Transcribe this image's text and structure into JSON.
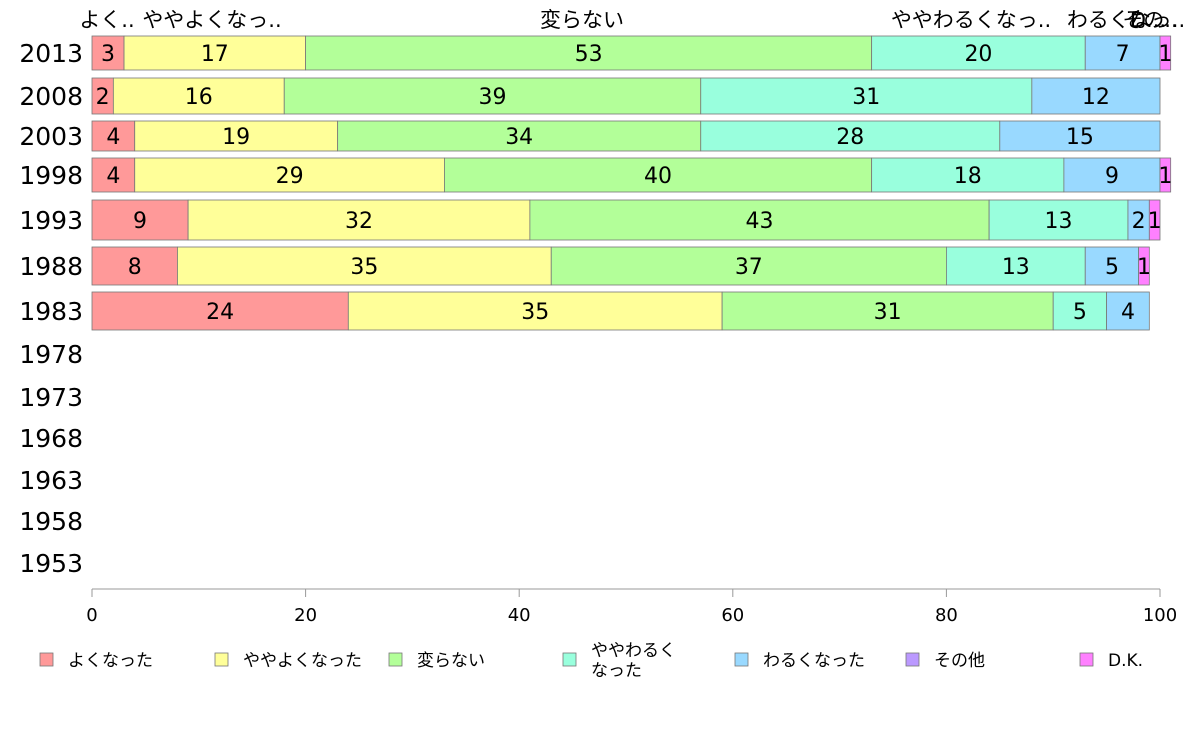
{
  "chart_data": {
    "type": "bar",
    "orientation": "horizontal",
    "stacked": true,
    "categories": [
      "2013",
      "2008",
      "2003",
      "1998",
      "1993",
      "1988",
      "1983",
      "1978",
      "1973",
      "1968",
      "1963",
      "1958",
      "1953"
    ],
    "series": [
      {
        "name": "よくなった",
        "color": "#ff9999",
        "values": [
          3,
          2,
          4,
          4,
          9,
          8,
          24,
          null,
          null,
          null,
          null,
          null,
          null
        ]
      },
      {
        "name": "ややよくなった",
        "color": "#ffff99",
        "values": [
          17,
          16,
          19,
          29,
          32,
          35,
          35,
          null,
          null,
          null,
          null,
          null,
          null
        ]
      },
      {
        "name": "変らない",
        "color": "#b3ff99",
        "values": [
          53,
          39,
          34,
          40,
          43,
          37,
          31,
          null,
          null,
          null,
          null,
          null,
          null
        ]
      },
      {
        "name": "ややわるくなった",
        "color": "#99ffdd",
        "values": [
          20,
          31,
          28,
          18,
          13,
          13,
          5,
          null,
          null,
          null,
          null,
          null,
          null
        ]
      },
      {
        "name": "わるくなった",
        "color": "#99d9ff",
        "values": [
          7,
          12,
          15,
          9,
          2,
          5,
          4,
          null,
          null,
          null,
          null,
          null,
          null
        ]
      },
      {
        "name": "その他",
        "color": "#bb99ff",
        "values": [
          0,
          0,
          0,
          0,
          0,
          0,
          0,
          null,
          null,
          null,
          null,
          null,
          null
        ]
      },
      {
        "name": "D.K.",
        "color": "#ff80ff",
        "values": [
          1,
          0,
          0,
          1,
          1,
          1,
          0,
          null,
          null,
          null,
          null,
          null,
          null
        ]
      }
    ],
    "top_labels": [
      "よく..",
      "ややよくなっ..",
      "変らない",
      "ややわるくなっ..",
      "わるくなっ..",
      "その..",
      "D..."
    ],
    "legend_labels": [
      "よくなった",
      "ややよくなった",
      "変らない",
      "ややわるく\nなった",
      "わるくなった",
      "その他",
      "D.K."
    ],
    "xlim": [
      0,
      100
    ],
    "xticks": [
      0,
      20,
      40,
      60,
      80,
      100
    ],
    "legend_position": "bottom",
    "grid": false,
    "title": "",
    "xlabel": "",
    "ylabel": ""
  }
}
